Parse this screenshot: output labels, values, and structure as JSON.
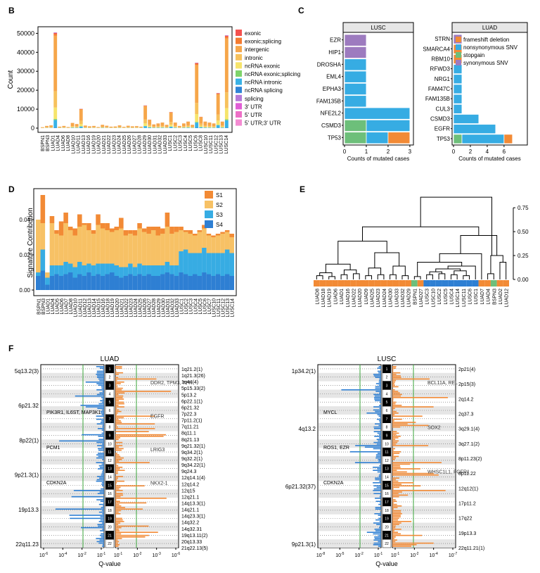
{
  "panels": {
    "B": "B",
    "C": "C",
    "D": "D",
    "E": "E",
    "F": "F"
  },
  "colors": {
    "exonic": "#f4514f",
    "exonic_splicing": "#f47a30",
    "intergenic": "#f6a64a",
    "intronic": "#f7c15c",
    "ncRNA_exonic": "#f6e46b",
    "ncRNA_exonic_splicing": "#7fd46b",
    "ncRNA_intronic": "#39b2e6",
    "ncRNA_splicing": "#2f84d6",
    "splicing": "#b57ad8",
    "utr3": "#e15ed6",
    "utr5": "#ee6fc7",
    "utr5_3": "#f48bd2",
    "frameshift": "#f28a35",
    "nonsyn": "#36ace3",
    "stopgain": "#6dbf7a",
    "synonymous": "#9d7bbf",
    "S1": "#f28a35",
    "S2": "#f7c165",
    "S3": "#37ace3",
    "S4": "#2e7fd3",
    "lusc_bar": "#2e7fd3",
    "luad_bar": "#f28a35",
    "threshold": "#3aa63a"
  },
  "chart_data": [
    {
      "panel": "B",
      "type": "bar",
      "ylabel": "Count",
      "yticks": [
        "0",
        "10000",
        "20000",
        "30000",
        "40000",
        "50000"
      ],
      "ylim": [
        0,
        52000
      ],
      "legend": [
        "exonic",
        "exonic;splicing",
        "intergenic",
        "intronic",
        "ncRNA exonic",
        "ncRNA exonic;splicing",
        "ncRNA intronic",
        "ncRNA splicing",
        "splicing",
        "3' UTR",
        "5' UTR",
        "5' UTR;3' UTR"
      ],
      "categories": [
        "BSPN1",
        "BSPN3",
        "LUAD1",
        "LUAD4",
        "LUAD5",
        "LUAD6",
        "LUAD8",
        "LUAD10",
        "LUAD11",
        "LUAD12",
        "LUAD13",
        "LUAD14",
        "LUAD15",
        "LUAD16",
        "LUAD17",
        "LUAD18",
        "LUAD19",
        "LUAD20",
        "LUAD21",
        "LUAD22",
        "LUAD23",
        "LUAD24",
        "LUAD25",
        "LUAD26",
        "LUAD27",
        "LUAD28",
        "LUAD29",
        "LUAD30",
        "LUAD31",
        "LUAD32",
        "LUAD33",
        "LUSC1",
        "LUSC2",
        "LUSC3",
        "LUSC4",
        "LUSC5",
        "LUSC6",
        "LUSC7",
        "LUSC8",
        "LUSC10",
        "LUSC11",
        "LUSC12",
        "LUSC13",
        "LUSC14"
      ],
      "tick_labels": [
        "BSPN1",
        "BSPN3",
        "LUAD1",
        "LUAD4",
        "LUAD6",
        "LUAD8",
        "LUAD10",
        "LUAD11",
        "LUAD13",
        "LUAD16",
        "LUAD19",
        "LUAD20",
        "LUAD21",
        "LUAD22",
        "LUAD23",
        "LUAD24",
        "LUAD25",
        "LUAD26",
        "LUAD27",
        "LUAD28",
        "LUAD29",
        "LUAD30",
        "LUAD31",
        "LUAD32",
        "LUAD33",
        "LUSC1",
        "LUSC2",
        "LUSC3",
        "LUSC4",
        "LUSC5",
        "LUSC6",
        "LUSC8",
        "LUSC10",
        "LUSC11",
        "LUSC12",
        "LUSC13",
        "LUSC14"
      ],
      "totals": [
        500,
        1200,
        1500,
        50500,
        800,
        1200,
        600,
        2800,
        2200,
        10200,
        1400,
        1000,
        1200,
        600,
        1800,
        1300,
        800,
        900,
        1500,
        700,
        1300,
        1000,
        1100,
        800,
        12000,
        4500,
        2000,
        2500,
        3000,
        1800,
        8500,
        3000,
        1200,
        2500,
        3500,
        1800,
        34500,
        6000,
        3500,
        3000,
        2500,
        18500,
        3500,
        49000
      ],
      "fractions": {
        "exonic": 0.01,
        "exonic_splicing": 0.02,
        "intergenic": 0.58,
        "intronic": 0.17,
        "ncRNA_exonic": 0.12,
        "ncRNA_exonic_splicing": 0.01,
        "ncRNA_intronic": 0.08,
        "ncRNA_splicing": 0.005,
        "splicing": 0.005
      }
    },
    {
      "panel": "C",
      "type": "bar",
      "subtitle_left": "LUSC",
      "subtitle_right": "LUAD",
      "xlabel": "Counts of mutated cases",
      "legend": [
        "frameshift deletion",
        "nonsynonymous SNV",
        "stopgain",
        "synonymous SNV"
      ],
      "lusc": {
        "genes": [
          "EZR",
          "HIP1",
          "DROSHA",
          "EML4",
          "EPHA3",
          "FAM135B",
          "NFE2L2",
          "CSMD3",
          "TP53"
        ],
        "xticks": [
          "0",
          "1",
          "2",
          "3"
        ],
        "xlim": [
          0,
          3.1
        ],
        "segments": [
          [
            {
              "k": "synonymous",
              "v": 1
            }
          ],
          [
            {
              "k": "synonymous",
              "v": 1
            }
          ],
          [
            {
              "k": "nonsyn",
              "v": 1
            }
          ],
          [
            {
              "k": "nonsyn",
              "v": 1
            }
          ],
          [
            {
              "k": "nonsyn",
              "v": 1
            }
          ],
          [
            {
              "k": "nonsyn",
              "v": 1
            }
          ],
          [
            {
              "k": "nonsyn",
              "v": 3
            }
          ],
          [
            {
              "k": "stopgain",
              "v": 1
            },
            {
              "k": "nonsyn",
              "v": 2
            }
          ],
          [
            {
              "k": "stopgain",
              "v": 1
            },
            {
              "k": "nonsyn",
              "v": 1
            },
            {
              "k": "frameshift",
              "v": 1
            }
          ]
        ]
      },
      "luad": {
        "genes": [
          "STRN",
          "SMARCA4",
          "RBM10",
          "RFWD3",
          "NRG1",
          "FAM47C",
          "FAM135B",
          "CUL3",
          "CSMD3",
          "EGFR",
          "TP53"
        ],
        "xticks": [
          "0",
          "2",
          "4",
          "6"
        ],
        "xlim": [
          0,
          8.6
        ],
        "segments": [
          [
            {
              "k": "synonymous",
              "v": 1
            }
          ],
          [
            {
              "k": "frameshift",
              "v": 1
            }
          ],
          [
            {
              "k": "frameshift",
              "v": 1
            }
          ],
          [
            {
              "k": "nonsyn",
              "v": 1
            }
          ],
          [
            {
              "k": "nonsyn",
              "v": 1
            }
          ],
          [
            {
              "k": "nonsyn",
              "v": 1
            }
          ],
          [
            {
              "k": "nonsyn",
              "v": 1
            }
          ],
          [
            {
              "k": "nonsyn",
              "v": 1
            }
          ],
          [
            {
              "k": "nonsyn",
              "v": 3
            }
          ],
          [
            {
              "k": "nonsyn",
              "v": 5
            }
          ],
          [
            {
              "k": "stopgain",
              "v": 1
            },
            {
              "k": "nonsyn",
              "v": 5
            },
            {
              "k": "frameshift",
              "v": 1
            }
          ]
        ]
      }
    },
    {
      "panel": "D",
      "type": "bar",
      "ylabel": "Signature Contribution",
      "yticks": [
        "0.00",
        "0.02",
        "0.04"
      ],
      "ylim": [
        0,
        0.056
      ],
      "legend": [
        "S1",
        "S2",
        "S3",
        "S4"
      ],
      "tick_labels": [
        "BSPN1",
        "BSPN3",
        "LUAD1",
        "LUAD4",
        "LUAD5",
        "LUAD6",
        "LUAD7",
        "LUAD8",
        "LUAD10",
        "LUAD11",
        "LUAD12",
        "LUAD13",
        "LUAD14",
        "LUAD15",
        "LUAD16",
        "LUAD18",
        "LUAD19",
        "LUAD20",
        "LUAD21",
        "LUAD22",
        "LUAD23",
        "LUAD24",
        "LUAD25",
        "LUAD26",
        "LUAD27",
        "LUAD28",
        "LUAD29",
        "LUAD30",
        "LUAD31",
        "LUAD32",
        "LUAD33",
        "LUSC1",
        "LUSC2",
        "LUSC3",
        "LUSC4",
        "LUSC5",
        "LUSC6",
        "LUSC7",
        "LUSC10",
        "LUSC11",
        "LUSC12",
        "LUSC13",
        "LUSC14"
      ],
      "series": [
        {
          "name": "S4",
          "values": [
            0.008,
            0.011,
            0.003,
            0.008,
            0.009,
            0.008,
            0.009,
            0.01,
            0.007,
            0.009,
            0.008,
            0.01,
            0.008,
            0.009,
            0.008,
            0.009,
            0.01,
            0.008,
            0.007,
            0.008,
            0.009,
            0.008,
            0.009,
            0.008,
            0.009,
            0.008,
            0.008,
            0.009,
            0.01,
            0.009,
            0.008,
            0.01,
            0.009,
            0.008,
            0.009,
            0.008,
            0.01,
            0.009,
            0.008,
            0.009,
            0.008,
            0.009,
            0.008
          ]
        },
        {
          "name": "S3",
          "values": [
            0.002,
            0.012,
            0.004,
            0.006,
            0.005,
            0.006,
            0.007,
            0.005,
            0.006,
            0.007,
            0.006,
            0.005,
            0.006,
            0.006,
            0.007,
            0.006,
            0.005,
            0.006,
            0.006,
            0.005,
            0.006,
            0.005,
            0.006,
            0.006,
            0.005,
            0.006,
            0.006,
            0.005,
            0.006,
            0.005,
            0.006,
            0.012,
            0.014,
            0.013,
            0.012,
            0.013,
            0.014,
            0.012,
            0.013,
            0.012,
            0.013,
            0.014,
            0.013
          ]
        },
        {
          "name": "S2",
          "values": [
            0.03,
            0.015,
            0.003,
            0.024,
            0.018,
            0.017,
            0.022,
            0.019,
            0.018,
            0.02,
            0.023,
            0.019,
            0.018,
            0.022,
            0.02,
            0.019,
            0.018,
            0.02,
            0.022,
            0.018,
            0.017,
            0.018,
            0.02,
            0.019,
            0.018,
            0.02,
            0.017,
            0.018,
            0.02,
            0.018,
            0.019,
            0.012,
            0.01,
            0.011,
            0.01,
            0.012,
            0.011,
            0.01,
            0.009,
            0.01,
            0.011,
            0.01,
            0.009
          ]
        },
        {
          "name": "S1",
          "values": [
            0.0,
            0.016,
            0.0,
            0.004,
            0.002,
            0.008,
            0.006,
            0.002,
            0.004,
            0.007,
            0.001,
            0.004,
            0.002,
            0.006,
            0.003,
            0.004,
            0.002,
            0.002,
            0.006,
            0.003,
            0.002,
            0.003,
            0.003,
            0.002,
            0.004,
            0.002,
            0.005,
            0.003,
            0.008,
            0.004,
            0.003,
            0.002,
            0.001,
            0.002,
            0.001,
            0.001,
            0.002,
            0.001,
            0.001,
            0.001,
            0.001,
            0.001,
            0.002
          ]
        }
      ]
    },
    {
      "panel": "E",
      "type": "table",
      "yticks": [
        "0.00",
        "0.25",
        "0.50",
        "0.75"
      ],
      "ylim": [
        0,
        0.92
      ],
      "leaves": [
        "LUAD8",
        "LUAD18",
        "LUAD19",
        "LUAD6",
        "LUAD1",
        "LUAD16",
        "LUAD22",
        "LUAD20",
        "LUAD9",
        "LUAD25",
        "LUAD23",
        "LUAD24",
        "LUAD30",
        "LUAD33",
        "LUAD32",
        "LUAD29",
        "BSPN1",
        "LUAD27",
        "LUSC3",
        "LUSC10",
        "LUSC2",
        "LUSC5",
        "LUSC4",
        "LUSC14",
        "LUSC11",
        "LUSC6",
        "LUSC1",
        "LUAD7",
        "LUAD4",
        "BSPN3",
        "LUAD2",
        "LUAD12"
      ],
      "leaf_group": [
        "LUAD",
        "LUAD",
        "LUAD",
        "LUAD",
        "LUAD",
        "LUAD",
        "LUAD",
        "LUAD",
        "LUAD",
        "LUAD",
        "LUAD",
        "LUAD",
        "LUAD",
        "LUAD",
        "LUAD",
        "LUAD",
        "BSPN",
        "LUAD",
        "LUSC",
        "LUSC",
        "LUSC",
        "LUSC",
        "LUSC",
        "LUSC",
        "LUSC",
        "LUSC",
        "LUSC",
        "LUAD",
        "LUAD",
        "BSPN",
        "LUAD",
        "LUAD"
      ]
    },
    {
      "panel": "F",
      "type": "table",
      "luad": {
        "title": "LUAD",
        "xlabel": "Q-value",
        "ticks_left": [
          "10^-6",
          "10^-4",
          "10^-2",
          "10^-1"
        ],
        "ticks_right": [
          "10^-1",
          "10^-2",
          "10^-3",
          "10^-6"
        ],
        "labels_left": [
          "5q13.2(3)",
          "6p21.32",
          "8p22(1)",
          "9p21.3(1)",
          "19p13.3",
          "22q11.23"
        ],
        "labels_right": [
          "1q21.2(1)",
          "1q21.3(26)",
          "1q44(4)",
          "5p15.33(2)",
          "5p13.2",
          "6p22.1(1)",
          "6p21.32",
          "7p22.3",
          "7p11.2(1)",
          "7q11.21",
          "8q11.1",
          "8q21.13",
          "9q21.32(1)",
          "9q34.2(1)",
          "9q32.2(1)",
          "9q34.22(1)",
          "9q24.3",
          "12q14.1(4)",
          "12q14.2",
          "12q15",
          "12q21.1",
          "14q13.3(1)",
          "14q21.1",
          "14q23.3(1)",
          "14q32.2",
          "14q32.31",
          "19q13.11(2)",
          "20q13.33",
          "21q22.13(5)"
        ],
        "gene_left": [
          "PIK3R1, IL6ST, MAP3K1",
          "PCM1",
          "CDKN2A"
        ],
        "gene_right": [
          "DDR2, TPM3, TPR",
          "EGFR",
          "LRIG3",
          "NKX2-1"
        ]
      },
      "lusc": {
        "title": "LUSC",
        "xlabel": "Q-value",
        "ticks_left": [
          "10^-8",
          "10^-5",
          "10^-2",
          "10^-1"
        ],
        "ticks_right": [
          "10^-1",
          "10^-2",
          "10^-4",
          "10^-7"
        ],
        "labels_left": [
          "1p34.2(1)",
          "4q13.2",
          "6p21.32(37)",
          "9p21.3(1)"
        ],
        "labels_right": [
          "2p21(4)",
          "2p15(3)",
          "2q14.2",
          "2q37.3",
          "3q29.1(4)",
          "3q27.1(2)",
          "8p11.23(2)",
          "8p11.22",
          "12q12(1)",
          "17p11.2",
          "17q22",
          "19p13.3",
          "22q11.21(1)"
        ],
        "gene_left": [
          "MYCL",
          "ROS1, EZR",
          "CDKN2A"
        ],
        "gene_right": [
          "BCL11A, REL",
          "SOX2",
          "WHSC1L1, FGFR1"
        ]
      }
    }
  ]
}
